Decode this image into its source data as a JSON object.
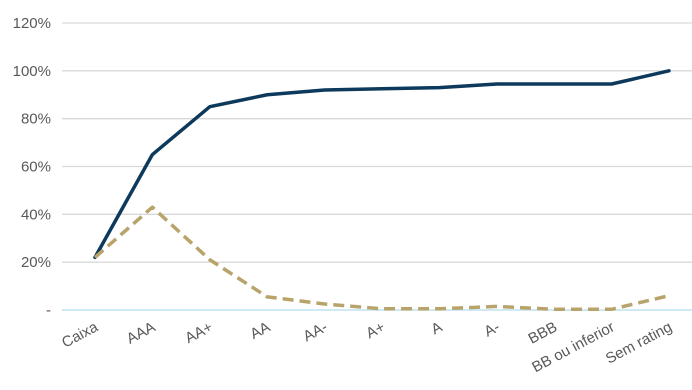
{
  "chart_data": {
    "type": "line",
    "categories": [
      "Caixa",
      "AAA",
      "AA+",
      "AA",
      "AA-",
      "A+",
      "A",
      "A-",
      "BBB",
      "BB ou inferior",
      "Sem rating"
    ],
    "series": [
      {
        "values": [
          22,
          65,
          85,
          90,
          92,
          92.5,
          93,
          94.5,
          94.5,
          94.5,
          100
        ],
        "color": "#0d3a5c",
        "style": "solid"
      },
      {
        "values": [
          22,
          43,
          21,
          5.5,
          2.5,
          0.5,
          0.5,
          1.5,
          0.3,
          0.3,
          6
        ],
        "color": "#b8a46a",
        "style": "dashed"
      }
    ],
    "ylim": [
      0,
      120
    ],
    "yticks": [
      0,
      20,
      40,
      60,
      80,
      100,
      120
    ],
    "ytick_labels": [
      "-",
      "20%",
      "40%",
      "60%",
      "80%",
      "100%",
      "120%"
    ],
    "grid": true,
    "legend": "none",
    "title": "",
    "xlabel": "",
    "ylabel": ""
  }
}
